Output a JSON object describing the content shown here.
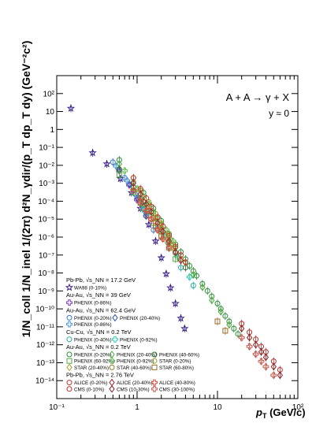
{
  "chart_data": {
    "type": "scatter",
    "title": "",
    "reaction_label": "A + A → γ + X",
    "rapidity_label": "y ≈ 0",
    "xlabel": "p_T (GeV/c)",
    "xlabel_main": "p",
    "xlabel_sub": "T",
    "xlabel_unit": " (GeV/c)",
    "ylabel": "1/N_coll 1/N_inel 1/(2π) d²N_γdir/(p_T dp_T dy) (GeV⁻²c²)",
    "x_scale": "log",
    "y_scale": "log",
    "xlim": [
      0.1,
      100
    ],
    "ylim": [
      1e-15,
      1000
    ],
    "x_ticks": [
      {
        "value": 0.1,
        "label": "10⁻¹"
      },
      {
        "value": 1,
        "label": "1"
      },
      {
        "value": 10,
        "label": "10"
      },
      {
        "value": 100,
        "label": "10²"
      }
    ],
    "y_ticks": [
      {
        "value": 100,
        "label": "10²"
      },
      {
        "value": 10,
        "label": "10"
      },
      {
        "value": 1,
        "label": "1"
      },
      {
        "value": 0.1,
        "label": "10⁻¹"
      },
      {
        "value": 0.01,
        "label": "10⁻²"
      },
      {
        "value": 0.001,
        "label": "10⁻³"
      },
      {
        "value": 0.0001,
        "label": "10⁻⁴"
      },
      {
        "value": 1e-05,
        "label": "10⁻⁵"
      },
      {
        "value": 1e-06,
        "label": "10⁻⁶"
      },
      {
        "value": 1e-07,
        "label": "10⁻⁷"
      },
      {
        "value": 1e-08,
        "label": "10⁻⁸"
      },
      {
        "value": 1e-09,
        "label": "10⁻⁹"
      },
      {
        "value": 1e-10,
        "label": "10⁻¹⁰"
      },
      {
        "value": 1e-11,
        "label": "10⁻¹¹"
      },
      {
        "value": 1e-12,
        "label": "10⁻¹²"
      },
      {
        "value": 1e-13,
        "label": "10⁻¹³"
      },
      {
        "value": 1e-14,
        "label": "10⁻¹⁴"
      }
    ],
    "grid": false,
    "legend_placement": "bottom-left",
    "legend_groups": [
      {
        "heading": "Pb-Pb, √s_NN = 17.2 GeV",
        "entries": [
          "WA98 (0-10%)"
        ]
      },
      {
        "heading": "Au-Au, √s_NN = 39 GeV",
        "entries": [
          "PHENIX (0-86%)"
        ]
      },
      {
        "heading": "Au-Au, √s_NN = 62.4 GeV",
        "entries": [
          "PHENIX (0-20%)",
          "PHENIX (20-40%)",
          "PHENIX (0-86%)"
        ]
      },
      {
        "heading": "Cu-Cu, √s_NN = 0.2 TeV",
        "entries": [
          "PHENIX (0-40%)",
          "PHENIX (0-92%)"
        ]
      },
      {
        "heading": "Au-Au, √s_NN = 0.2 TeV",
        "entries": [
          "PHENIX (0-20%)",
          "PHENIX (20-40%)",
          "PHENIX (40-60%)",
          "PHENIX (60-92%)",
          "PHENIX (0-92%)",
          "STAR (0-20%)",
          "STAR (20-40%)",
          "STAR (40-60%)",
          "STAR (60-80%)"
        ]
      },
      {
        "heading": "Pb-Pb, √s_NN = 2.76 TeV",
        "entries": [
          "ALICE (0-20%)",
          "ALICE (20-40%)",
          "ALICE (40-80%)",
          "CMS (0-10%)",
          "CMS (10-30%)",
          "CMS (30-100%)"
        ]
      }
    ],
    "series": [
      {
        "name": "WA98 (0-10%)",
        "color": "#3b1f8c",
        "marker": "star",
        "x": [
          0.15,
          0.28,
          0.42,
          0.62,
          0.85,
          1.1,
          1.4,
          1.7,
          2.0,
          2.3,
          2.6,
          3.0,
          3.5,
          3.9
        ],
        "y": [
          15,
          0.05,
          0.012,
          0.0018,
          0.0003,
          4e-05,
          5e-06,
          6e-07,
          7e-08,
          9e-09,
          1.5e-09,
          2e-10,
          3e-11,
          8e-12
        ]
      },
      {
        "name": "PHENIX (0-86%) 39 GeV",
        "color": "#7a3db8",
        "marker": "open-cross",
        "x": [
          0.6,
          0.8,
          1.0,
          1.3
        ],
        "y": [
          0.005,
          0.0008,
          0.00012,
          1.5e-05
        ]
      },
      {
        "name": "PHENIX (0-20%) 62.4 GeV",
        "color": "#3a78c9",
        "marker": "open-circle",
        "x": [
          0.5,
          0.7,
          0.9,
          1.1,
          1.3,
          1.6
        ],
        "y": [
          0.015,
          0.002,
          0.0004,
          8e-05,
          1.5e-05,
          2.5e-06
        ]
      },
      {
        "name": "PHENIX (20-40%) 62.4 GeV",
        "color": "#2a56a6",
        "marker": "open-diamond",
        "x": [
          0.6,
          0.8,
          1.0,
          1.3
        ],
        "y": [
          0.006,
          0.0009,
          0.00015,
          2e-05
        ]
      },
      {
        "name": "PHENIX (0-86%) 62.4 GeV",
        "color": "#4f9ad8",
        "marker": "open-cross",
        "x": [
          0.55,
          0.75,
          0.95,
          1.2
        ],
        "y": [
          0.009,
          0.0014,
          0.00025,
          3.5e-05
        ]
      },
      {
        "name": "PHENIX (0-40%) Cu-Cu",
        "color": "#2aa9a0",
        "marker": "open-circle",
        "x": [
          1.2,
          1.8,
          2.5,
          3.5,
          5.0
        ],
        "y": [
          6e-05,
          3e-06,
          3e-07,
          2e-08,
          2e-09
        ]
      },
      {
        "name": "PHENIX (0-92%) Cu-Cu",
        "color": "#3cc9b8",
        "marker": "open-cross",
        "x": [
          1.4,
          2.2,
          3.2,
          4.5
        ],
        "y": [
          2.5e-05,
          1.2e-06,
          8e-08,
          6e-09
        ]
      },
      {
        "name": "PHENIX (0-20%) Au-Au 200",
        "color": "#2e8b3a",
        "marker": "open-circle",
        "x": [
          0.6,
          0.9,
          1.2,
          1.6,
          2.0,
          2.5,
          3.0,
          3.5,
          4.0,
          4.5,
          5.0,
          5.5,
          6.5,
          7.5,
          8.5,
          10,
          11,
          12.5,
          14,
          16,
          18
        ],
        "y": [
          0.02,
          0.002,
          0.0003,
          4e-05,
          8e-06,
          1.5e-06,
          4e-07,
          1.5e-07,
          6e-08,
          2.5e-08,
          1.3e-08,
          7e-09,
          2.5e-09,
          1e-09,
          5e-10,
          2e-10,
          1e-10,
          4e-11,
          2e-11,
          8e-12,
          4e-12
        ]
      },
      {
        "name": "PHENIX (20-40%) Au-Au 200",
        "color": "#4aa83e",
        "marker": "open-diamond",
        "x": [
          0.6,
          0.9,
          1.2,
          1.6,
          2.0,
          2.5,
          3.0,
          4.0,
          5.0,
          6.5,
          8.5,
          11,
          14
        ],
        "y": [
          0.012,
          0.0012,
          0.00018,
          2.5e-05,
          5e-06,
          9e-07,
          2.5e-07,
          4e-08,
          8e-09,
          1.6e-09,
          3e-10,
          7e-11,
          1.3e-11
        ]
      },
      {
        "name": "PHENIX (40-60%) Au-Au 200",
        "color": "#2f6e2a",
        "marker": "open-circle",
        "x": [
          0.6,
          0.9,
          1.2,
          1.6,
          2.0,
          2.5,
          3.0,
          4.0
        ],
        "y": [
          0.006,
          0.0006,
          9e-05,
          1.2e-05,
          2.5e-06,
          5e-07,
          1.3e-07,
          2e-08
        ]
      },
      {
        "name": "PHENIX (60-92%) Au-Au 200",
        "color": "#58a84a",
        "marker": "open-square",
        "x": [
          0.6,
          0.9,
          1.2,
          1.6,
          2.0,
          2.5,
          3.0
        ],
        "y": [
          0.003,
          0.0003,
          4e-05,
          6e-06,
          1.2e-06,
          2.5e-07,
          6e-08
        ]
      },
      {
        "name": "PHENIX (0-92%) Au-Au 200",
        "color": "#6bbf5a",
        "marker": "open-cross",
        "x": [
          0.7,
          1.0,
          1.4,
          1.8,
          2.3,
          2.8
        ],
        "y": [
          0.005,
          0.0005,
          7e-05,
          1.2e-05,
          2.5e-06,
          6e-07
        ]
      },
      {
        "name": "STAR (0-20%)",
        "color": "#8aa12a",
        "marker": "open-circle",
        "x": [
          1.1,
          1.4,
          1.7,
          2.0,
          2.4,
          2.8,
          3.5
        ],
        "y": [
          0.0004,
          9e-05,
          2e-05,
          6e-06,
          1.5e-06,
          4e-07,
          6e-08
        ]
      },
      {
        "name": "STAR (20-40%)",
        "color": "#a6a833",
        "marker": "open-diamond",
        "x": [
          1.1,
          1.4,
          1.7,
          2.0,
          2.4,
          2.8
        ],
        "y": [
          0.00025,
          5e-05,
          1.2e-05,
          3.5e-06,
          9e-07,
          2.5e-07
        ]
      },
      {
        "name": "STAR (40-60%)",
        "color": "#8f7a2a",
        "marker": "open-circle",
        "x": [
          1.1,
          1.4,
          1.7,
          2.0,
          2.4
        ],
        "y": [
          0.00015,
          3e-05,
          7e-06,
          2e-06,
          5e-07
        ]
      },
      {
        "name": "STAR (60-80%)",
        "color": "#9c6e24",
        "marker": "open-square",
        "x": [
          1.1,
          1.4,
          1.7,
          2.0,
          10,
          12.5
        ],
        "y": [
          8e-05,
          1.6e-05,
          4e-06,
          1.1e-06,
          2e-11,
          6e-12
        ]
      },
      {
        "name": "ALICE (0-20%)",
        "color": "#c0392b",
        "marker": "open-circle",
        "x": [
          0.9,
          1.1,
          1.3,
          1.5,
          1.8,
          2.1,
          2.5,
          3.0,
          3.5,
          4.0
        ],
        "y": [
          0.002,
          0.0005,
          0.00015,
          5e-05,
          1.3e-05,
          4e-06,
          1.2e-06,
          3e-07,
          1e-07,
          4e-08
        ]
      },
      {
        "name": "ALICE (20-40%)",
        "color": "#a0282a",
        "marker": "open-diamond",
        "x": [
          0.9,
          1.1,
          1.3,
          1.5,
          1.8,
          2.1,
          2.5,
          3.0,
          3.5
        ],
        "y": [
          0.001,
          0.00025,
          7e-05,
          2.5e-05,
          6e-06,
          2e-06,
          6e-07,
          1.5e-07,
          5e-08
        ]
      },
      {
        "name": "ALICE (40-80%)",
        "color": "#d24a3a",
        "marker": "open-cross",
        "x": [
          0.9,
          1.1,
          1.3,
          1.5,
          1.8,
          2.1,
          2.5
        ],
        "y": [
          0.0004,
          0.0001,
          3e-05,
          1e-05,
          2.5e-06,
          8e-07,
          2.5e-07
        ]
      },
      {
        "name": "CMS (0-10%)",
        "color": "#b0302a",
        "marker": "open-circle",
        "x": [
          20,
          25,
          30,
          35,
          40,
          50,
          60
        ],
        "y": [
          1.5e-11,
          5e-12,
          2e-12,
          8e-13,
          4e-13,
          1.2e-13,
          4e-14
        ]
      },
      {
        "name": "CMS (10-30%)",
        "color": "#8e2020",
        "marker": "open-diamond",
        "x": [
          20,
          25,
          30,
          35,
          40,
          50,
          60
        ],
        "y": [
          8e-12,
          2.5e-12,
          1e-12,
          4e-13,
          2e-13,
          6e-14,
          2e-14
        ]
      },
      {
        "name": "CMS (30-100%)",
        "color": "#c65a50",
        "marker": "open-cross",
        "x": [
          20,
          25,
          30,
          35,
          40,
          50
        ],
        "y": [
          2.5e-12,
          8e-13,
          3e-13,
          1.2e-13,
          6e-14,
          2e-14
        ]
      }
    ]
  }
}
